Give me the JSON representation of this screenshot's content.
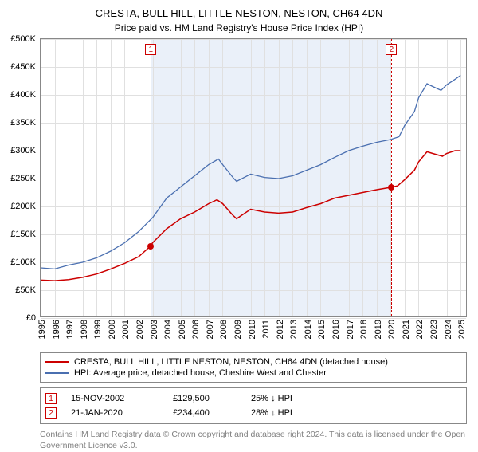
{
  "title": "CRESTA, BULL HILL, LITTLE NESTON, NESTON, CH64 4DN",
  "subtitle": "Price paid vs. HM Land Registry's House Price Index (HPI)",
  "chart": {
    "type": "line",
    "background_color": "#ffffff",
    "grid_color": "#e0e0e0",
    "border_color": "#888888",
    "x_years": [
      1995,
      1996,
      1997,
      1998,
      1999,
      2000,
      2001,
      2002,
      2003,
      2004,
      2005,
      2006,
      2007,
      2008,
      2009,
      2010,
      2011,
      2012,
      2013,
      2014,
      2015,
      2016,
      2017,
      2018,
      2019,
      2020,
      2021,
      2022,
      2023,
      2024,
      2025
    ],
    "x_min": 1995,
    "x_max": 2025.5,
    "ylim": [
      0,
      500000
    ],
    "ytick_step": 50000,
    "yticks": [
      "£0",
      "£50K",
      "£100K",
      "£150K",
      "£200K",
      "£250K",
      "£300K",
      "£350K",
      "£400K",
      "£450K",
      "£500K"
    ],
    "label_fontsize": 11,
    "title_fontsize": 13,
    "band": {
      "start": 2002.87,
      "end": 2020.06,
      "color": "rgba(220,230,245,0.6)"
    },
    "series": [
      {
        "name": "property",
        "label": "CRESTA, BULL HILL, LITTLE NESTON, NESTON, CH64 4DN (detached house)",
        "color": "#cc0000",
        "width": 1.5,
        "points": [
          [
            1995,
            68000
          ],
          [
            1996,
            67000
          ],
          [
            1997,
            69000
          ],
          [
            1998,
            73000
          ],
          [
            1999,
            79000
          ],
          [
            2000,
            88000
          ],
          [
            2001,
            98000
          ],
          [
            2002,
            110000
          ],
          [
            2002.87,
            129500
          ],
          [
            2003,
            135000
          ],
          [
            2004,
            160000
          ],
          [
            2005,
            178000
          ],
          [
            2006,
            190000
          ],
          [
            2007,
            205000
          ],
          [
            2007.6,
            212000
          ],
          [
            2008,
            205000
          ],
          [
            2008.7,
            185000
          ],
          [
            2009,
            178000
          ],
          [
            2010,
            195000
          ],
          [
            2011,
            190000
          ],
          [
            2012,
            188000
          ],
          [
            2013,
            190000
          ],
          [
            2014,
            198000
          ],
          [
            2015,
            205000
          ],
          [
            2016,
            215000
          ],
          [
            2017,
            220000
          ],
          [
            2018,
            225000
          ],
          [
            2019,
            230000
          ],
          [
            2020.06,
            234400
          ],
          [
            2020.5,
            237000
          ],
          [
            2021,
            248000
          ],
          [
            2021.7,
            265000
          ],
          [
            2022,
            280000
          ],
          [
            2022.6,
            298000
          ],
          [
            2023,
            295000
          ],
          [
            2023.7,
            290000
          ],
          [
            2024,
            295000
          ],
          [
            2024.6,
            300000
          ],
          [
            2025,
            300000
          ]
        ]
      },
      {
        "name": "hpi",
        "label": "HPI: Average price, detached house, Cheshire West and Chester",
        "color": "#4a6fb0",
        "width": 1.3,
        "points": [
          [
            1995,
            90000
          ],
          [
            1996,
            88000
          ],
          [
            1997,
            95000
          ],
          [
            1998,
            100000
          ],
          [
            1999,
            108000
          ],
          [
            2000,
            120000
          ],
          [
            2001,
            135000
          ],
          [
            2002,
            155000
          ],
          [
            2003,
            180000
          ],
          [
            2004,
            215000
          ],
          [
            2005,
            235000
          ],
          [
            2006,
            255000
          ],
          [
            2007,
            275000
          ],
          [
            2007.7,
            285000
          ],
          [
            2008,
            275000
          ],
          [
            2008.8,
            250000
          ],
          [
            2009,
            245000
          ],
          [
            2010,
            258000
          ],
          [
            2011,
            252000
          ],
          [
            2012,
            250000
          ],
          [
            2013,
            255000
          ],
          [
            2014,
            265000
          ],
          [
            2015,
            275000
          ],
          [
            2016,
            288000
          ],
          [
            2017,
            300000
          ],
          [
            2018,
            308000
          ],
          [
            2019,
            315000
          ],
          [
            2020,
            320000
          ],
          [
            2020.6,
            325000
          ],
          [
            2021,
            345000
          ],
          [
            2021.7,
            370000
          ],
          [
            2022,
            395000
          ],
          [
            2022.6,
            420000
          ],
          [
            2023,
            415000
          ],
          [
            2023.6,
            408000
          ],
          [
            2024,
            418000
          ],
          [
            2024.6,
            428000
          ],
          [
            2025,
            435000
          ]
        ]
      }
    ],
    "event_lines": [
      {
        "x": 2002.87,
        "badge": "1"
      },
      {
        "x": 2020.06,
        "badge": "2"
      }
    ],
    "markers": [
      {
        "x": 2002.87,
        "y": 129500,
        "color": "#cc0000"
      },
      {
        "x": 2020.06,
        "y": 234400,
        "color": "#cc0000"
      }
    ]
  },
  "legend": {
    "items": [
      {
        "color": "#cc0000",
        "label": "CRESTA, BULL HILL, LITTLE NESTON, NESTON, CH64 4DN (detached house)"
      },
      {
        "color": "#4a6fb0",
        "label": "HPI: Average price, detached house, Cheshire West and Chester"
      }
    ]
  },
  "events": [
    {
      "n": "1",
      "date": "15-NOV-2002",
      "price": "£129,500",
      "pct": "25% ↓ HPI"
    },
    {
      "n": "2",
      "date": "21-JAN-2020",
      "price": "£234,400",
      "pct": "28% ↓ HPI"
    }
  ],
  "credits": "Contains HM Land Registry data © Crown copyright and database right 2024. This data is licensed under the Open Government Licence v3.0."
}
